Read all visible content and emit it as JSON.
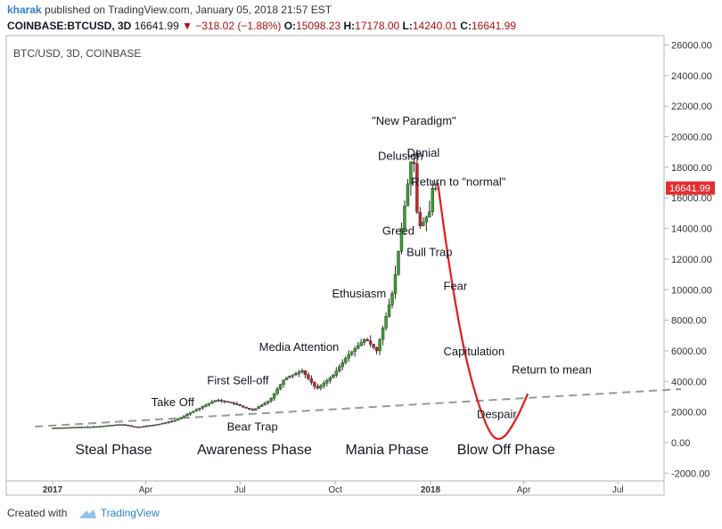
{
  "header": {
    "user": "kharak",
    "published_text": "published on TradingView.com, January 05, 2018 21:57 EST",
    "symbol": "COINBASE:BTCUSD, 3D",
    "last": "16641.99",
    "change": "▼ −318.02 (−1.88%)",
    "o_label": "O:",
    "o_value": "15098.23",
    "h_label": "H:",
    "h_value": "17178.00",
    "l_label": "L:",
    "l_value": "14240.01",
    "c_label": "C:",
    "c_value": "16641.99"
  },
  "footer": {
    "created_with": "Created with",
    "brand": "TradingView"
  },
  "colors": {
    "up": "#3a9c2f",
    "down": "#c0272d",
    "curve": "#e31b1b",
    "trend": "#999999",
    "price_tag": "#e42f2f"
  },
  "chart_data": {
    "type": "candlestick",
    "title": "BTC/USD, 3D, COINBASE",
    "x_ticks": [
      "2017",
      "Apr",
      "Jul",
      "Oct",
      "2018",
      "Apr",
      "Jul"
    ],
    "y_ticks": [
      "26000.00",
      "24000.00",
      "22000.00",
      "20000.00",
      "18000.00",
      "16000.00",
      "14000.00",
      "12000.00",
      "10000.00",
      "8000.00",
      "6000.00",
      "4000.00",
      "2000.00",
      "0.00",
      "-2000.00"
    ],
    "ylim": [
      -2300,
      27000
    ],
    "last_price_label": "16641.99",
    "price_path": [
      [
        "2017-01-01",
        950
      ],
      [
        "2017-02-15",
        1050
      ],
      [
        "2017-03-10",
        1200
      ],
      [
        "2017-03-25",
        1000
      ],
      [
        "2017-04-15",
        1200
      ],
      [
        "2017-05-01",
        1450
      ],
      [
        "2017-05-20",
        2100
      ],
      [
        "2017-06-10",
        2800
      ],
      [
        "2017-06-25",
        2600
      ],
      [
        "2017-07-15",
        2100
      ],
      [
        "2017-08-01",
        2800
      ],
      [
        "2017-08-15",
        4200
      ],
      [
        "2017-09-01",
        4700
      ],
      [
        "2017-09-15",
        3500
      ],
      [
        "2017-10-01",
        4400
      ],
      [
        "2017-10-15",
        5700
      ],
      [
        "2017-11-01",
        6800
      ],
      [
        "2017-11-12",
        6000
      ],
      [
        "2017-11-28",
        10000
      ],
      [
        "2017-12-08",
        15000
      ],
      [
        "2017-12-17",
        19300
      ],
      [
        "2017-12-22",
        14000
      ],
      [
        "2017-12-28",
        14500
      ],
      [
        "2018-01-02",
        15100
      ],
      [
        "2018-01-05",
        16642
      ]
    ],
    "projection_path": [
      [
        "2018-01-08",
        17000
      ],
      [
        "2018-01-20",
        11000
      ],
      [
        "2018-02-05",
        5000
      ],
      [
        "2018-02-25",
        700
      ],
      [
        "2018-03-10",
        0
      ],
      [
        "2018-03-25",
        1500
      ],
      [
        "2018-04-05",
        3200
      ]
    ],
    "trend_line": [
      [
        "2016-12-15",
        1050
      ],
      [
        "2018-08-31",
        3500
      ]
    ],
    "annotations": [
      {
        "text": "\"New Paradigm\"",
        "x": "2017-12-16",
        "y": 20800
      },
      {
        "text": "Delusion",
        "x": "2017-12-03",
        "y": 18500
      },
      {
        "text": "Denial",
        "x": "2017-12-25",
        "y": 18700
      },
      {
        "text": "Return to \"normal\"",
        "x": "2018-01-28",
        "y": 16800
      },
      {
        "text": "Greed",
        "x": "2017-12-01",
        "y": 13600
      },
      {
        "text": "Bull Trap",
        "x": "2017-12-31",
        "y": 12200
      },
      {
        "text": "Fear",
        "x": "2018-01-25",
        "y": 10000
      },
      {
        "text": "Ethusiasm",
        "x": "2017-10-24",
        "y": 9500
      },
      {
        "text": "Media Attention",
        "x": "2017-08-27",
        "y": 6000
      },
      {
        "text": "Capitulation",
        "x": "2018-02-12",
        "y": 5700
      },
      {
        "text": "Return to mean",
        "x": "2018-04-28",
        "y": 4500
      },
      {
        "text": "First Sell-off",
        "x": "2017-06-29",
        "y": 3800
      },
      {
        "text": "Take Off",
        "x": "2017-04-27",
        "y": 2400
      },
      {
        "text": "Despair",
        "x": "2018-03-06",
        "y": 1600
      },
      {
        "text": "Bear Trap",
        "x": "2017-07-13",
        "y": 800
      }
    ],
    "phases": [
      {
        "text": "Steal Phase",
        "x": "2017-03-01"
      },
      {
        "text": "Awareness Phase",
        "x": "2017-07-15"
      },
      {
        "text": "Mania Phase",
        "x": "2017-11-20"
      },
      {
        "text": "Blow Off Phase",
        "x": "2018-03-15"
      }
    ]
  }
}
